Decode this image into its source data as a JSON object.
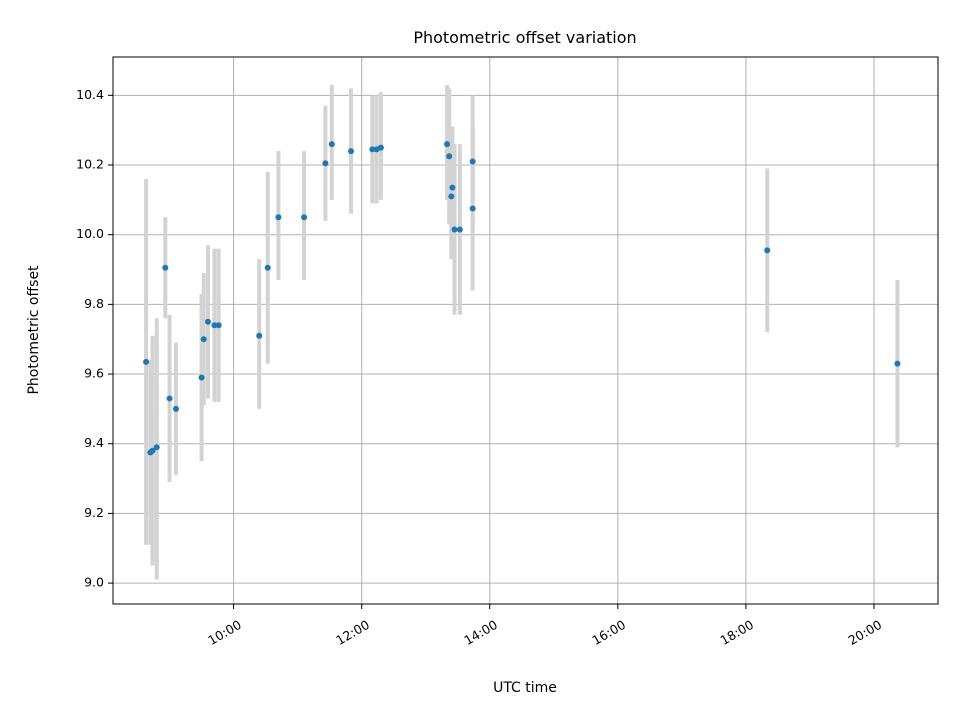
{
  "chart_data": {
    "type": "scatter",
    "title": "Photometric offset variation",
    "xlabel": "UTC time",
    "ylabel": "Photometric offset",
    "x_ticks": [
      "10:00",
      "12:00",
      "14:00",
      "16:00",
      "18:00",
      "20:00"
    ],
    "y_ticks": [
      "9.0",
      "9.2",
      "9.4",
      "9.6",
      "9.8",
      "10.0",
      "10.2",
      "10.4"
    ],
    "xlim": [
      "08:07",
      "21:00"
    ],
    "ylim": [
      8.94,
      10.51
    ],
    "grid": true,
    "colors": {
      "point": "#1f77b4",
      "errorbar": "#d3d3d3",
      "grid": "#b0b0b0"
    },
    "points": [
      {
        "x": "08:38",
        "y": 9.635,
        "yerr_low": 9.11,
        "yerr_high": 10.16
      },
      {
        "x": "08:42",
        "y": 9.375,
        "yerr_low": 9.11,
        "yerr_high": 9.64
      },
      {
        "x": "08:44",
        "y": 9.38,
        "yerr_low": 9.05,
        "yerr_high": 9.71
      },
      {
        "x": "08:48",
        "y": 9.39,
        "yerr_low": 9.01,
        "yerr_high": 9.76
      },
      {
        "x": "08:56",
        "y": 9.905,
        "yerr_low": 9.76,
        "yerr_high": 10.05
      },
      {
        "x": "09:00",
        "y": 9.53,
        "yerr_low": 9.29,
        "yerr_high": 9.77
      },
      {
        "x": "09:06",
        "y": 9.5,
        "yerr_low": 9.31,
        "yerr_high": 9.69
      },
      {
        "x": "09:30",
        "y": 9.59,
        "yerr_low": 9.35,
        "yerr_high": 9.83
      },
      {
        "x": "09:32",
        "y": 9.7,
        "yerr_low": 9.51,
        "yerr_high": 9.89
      },
      {
        "x": "09:36",
        "y": 9.75,
        "yerr_low": 9.53,
        "yerr_high": 9.97
      },
      {
        "x": "09:42",
        "y": 9.74,
        "yerr_low": 9.52,
        "yerr_high": 9.96
      },
      {
        "x": "09:46",
        "y": 9.74,
        "yerr_low": 9.52,
        "yerr_high": 9.96
      },
      {
        "x": "10:24",
        "y": 9.71,
        "yerr_low": 9.5,
        "yerr_high": 9.93
      },
      {
        "x": "10:32",
        "y": 9.905,
        "yerr_low": 9.63,
        "yerr_high": 10.18
      },
      {
        "x": "10:42",
        "y": 10.05,
        "yerr_low": 9.87,
        "yerr_high": 10.24
      },
      {
        "x": "11:06",
        "y": 10.05,
        "yerr_low": 9.87,
        "yerr_high": 10.24
      },
      {
        "x": "11:26",
        "y": 10.205,
        "yerr_low": 10.04,
        "yerr_high": 10.37
      },
      {
        "x": "11:32",
        "y": 10.26,
        "yerr_low": 10.1,
        "yerr_high": 10.43
      },
      {
        "x": "11:50",
        "y": 10.24,
        "yerr_low": 10.06,
        "yerr_high": 10.42
      },
      {
        "x": "12:10",
        "y": 10.245,
        "yerr_low": 10.09,
        "yerr_high": 10.4
      },
      {
        "x": "12:14",
        "y": 10.245,
        "yerr_low": 10.09,
        "yerr_high": 10.4
      },
      {
        "x": "12:18",
        "y": 10.25,
        "yerr_low": 10.1,
        "yerr_high": 10.41
      },
      {
        "x": "13:20",
        "y": 10.26,
        "yerr_low": 10.1,
        "yerr_high": 10.43
      },
      {
        "x": "13:22",
        "y": 10.225,
        "yerr_low": 10.03,
        "yerr_high": 10.42
      },
      {
        "x": "13:24",
        "y": 10.11,
        "yerr_low": 9.93,
        "yerr_high": 10.29
      },
      {
        "x": "13:25",
        "y": 10.135,
        "yerr_low": 9.96,
        "yerr_high": 10.31
      },
      {
        "x": "13:27",
        "y": 10.015,
        "yerr_low": 9.77,
        "yerr_high": 10.26
      },
      {
        "x": "13:32",
        "y": 10.015,
        "yerr_low": 9.77,
        "yerr_high": 10.26
      },
      {
        "x": "13:44",
        "y": 10.21,
        "yerr_low": 10.02,
        "yerr_high": 10.4
      },
      {
        "x": "13:44",
        "y": 10.075,
        "yerr_low": 9.84,
        "yerr_high": 10.31
      },
      {
        "x": "18:20",
        "y": 9.955,
        "yerr_low": 9.72,
        "yerr_high": 10.19
      },
      {
        "x": "20:22",
        "y": 9.63,
        "yerr_low": 9.39,
        "yerr_high": 9.87
      }
    ]
  }
}
